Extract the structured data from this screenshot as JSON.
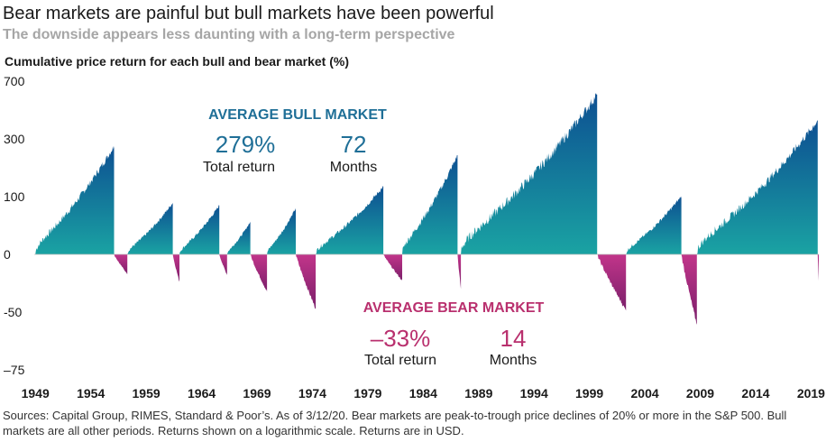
{
  "title": "Bear markets are painful but bull markets have been powerful",
  "subtitle": "The downside appears less daunting with a long-term perspective",
  "source": "Sources: Capital Group, RIMES, Standard & Poor’s. As of 3/12/20. Bear markets are peak-to-trough price declines of 20% or more in the S&P 500. Bull markets are all other periods. Returns shown on a logarithmic scale. Returns are in USD.",
  "colors": {
    "bull_dark": "#0d4f92",
    "bull_light": "#1aa3a3",
    "bear_dark": "#7a1f6a",
    "bear_light": "#c2358a",
    "bull_text": "#1f6f97",
    "bear_text": "#b9306e"
  },
  "annotations": {
    "bull": {
      "heading": "AVERAGE BULL MARKET",
      "return_value": "279%",
      "return_label": "Total return",
      "months_value": "72",
      "months_label": "Months"
    },
    "bear": {
      "heading": "AVERAGE BEAR MARKET",
      "return_value": "–33%",
      "return_label": "Total return",
      "months_value": "14",
      "months_label": "Months"
    }
  },
  "chart_data": {
    "type": "area",
    "title": "Bear markets are painful but bull markets have been powerful",
    "subtitle": "The downside appears less daunting with a long-term perspective",
    "ylabel": "Cumulative price return for each bull and bear market (%)",
    "scale": "log",
    "y_ticks": [
      "700",
      "300",
      "100",
      "0",
      "-50",
      "–75"
    ],
    "y_tick_values": [
      700,
      300,
      100,
      0,
      -50,
      -75
    ],
    "x_ticks": [
      "1949",
      "1954",
      "1959",
      "1964",
      "1969",
      "1974",
      "1979",
      "1984",
      "1989",
      "1994",
      "1999",
      "2004",
      "2009",
      "2014",
      "2019"
    ],
    "x_range": [
      1949.4,
      2020.2
    ],
    "grid": false,
    "legend": "none",
    "series": [
      {
        "name": "Bull",
        "type": "bull",
        "start": 1949.5,
        "end": 1956.6,
        "peak": 267
      },
      {
        "name": "Bear",
        "type": "bear",
        "start": 1956.6,
        "end": 1957.8,
        "trough": -21
      },
      {
        "name": "Bull",
        "type": "bull",
        "start": 1957.8,
        "end": 1961.9,
        "peak": 86
      },
      {
        "name": "Bear",
        "type": "bear",
        "start": 1961.9,
        "end": 1962.5,
        "trough": -28
      },
      {
        "name": "Bull",
        "type": "bull",
        "start": 1962.5,
        "end": 1966.1,
        "peak": 80
      },
      {
        "name": "Bear",
        "type": "bear",
        "start": 1966.1,
        "end": 1966.8,
        "trough": -22
      },
      {
        "name": "Bull",
        "type": "bull",
        "start": 1966.8,
        "end": 1968.9,
        "peak": 48
      },
      {
        "name": "Bear",
        "type": "bear",
        "start": 1968.9,
        "end": 1970.4,
        "trough": -36
      },
      {
        "name": "Bull",
        "type": "bull",
        "start": 1970.4,
        "end": 1973.0,
        "peak": 74
      },
      {
        "name": "Bear",
        "type": "bear",
        "start": 1973.0,
        "end": 1974.8,
        "trough": -48
      },
      {
        "name": "Bull",
        "type": "bull",
        "start": 1974.8,
        "end": 1980.9,
        "peak": 126
      },
      {
        "name": "Bear",
        "type": "bear",
        "start": 1980.9,
        "end": 1982.6,
        "trough": -27
      },
      {
        "name": "Bull",
        "type": "bull",
        "start": 1982.6,
        "end": 1987.6,
        "peak": 229
      },
      {
        "name": "Bear",
        "type": "bear",
        "start": 1987.6,
        "end": 1987.9,
        "trough": -34
      },
      {
        "name": "Bull",
        "type": "bull",
        "start": 1987.9,
        "end": 2000.2,
        "peak": 582
      },
      {
        "name": "Bear",
        "type": "bear",
        "start": 2000.2,
        "end": 2002.8,
        "trough": -49
      },
      {
        "name": "Bull",
        "type": "bull",
        "start": 2002.8,
        "end": 2007.8,
        "peak": 101
      },
      {
        "name": "Bear",
        "type": "bear",
        "start": 2007.8,
        "end": 2009.2,
        "trough": -57
      },
      {
        "name": "Bull",
        "type": "bull",
        "start": 2009.2,
        "end": 2020.1,
        "peak": 400
      },
      {
        "name": "Bear",
        "type": "bear",
        "start": 2020.1,
        "end": 2020.2,
        "trough": -27
      }
    ]
  }
}
